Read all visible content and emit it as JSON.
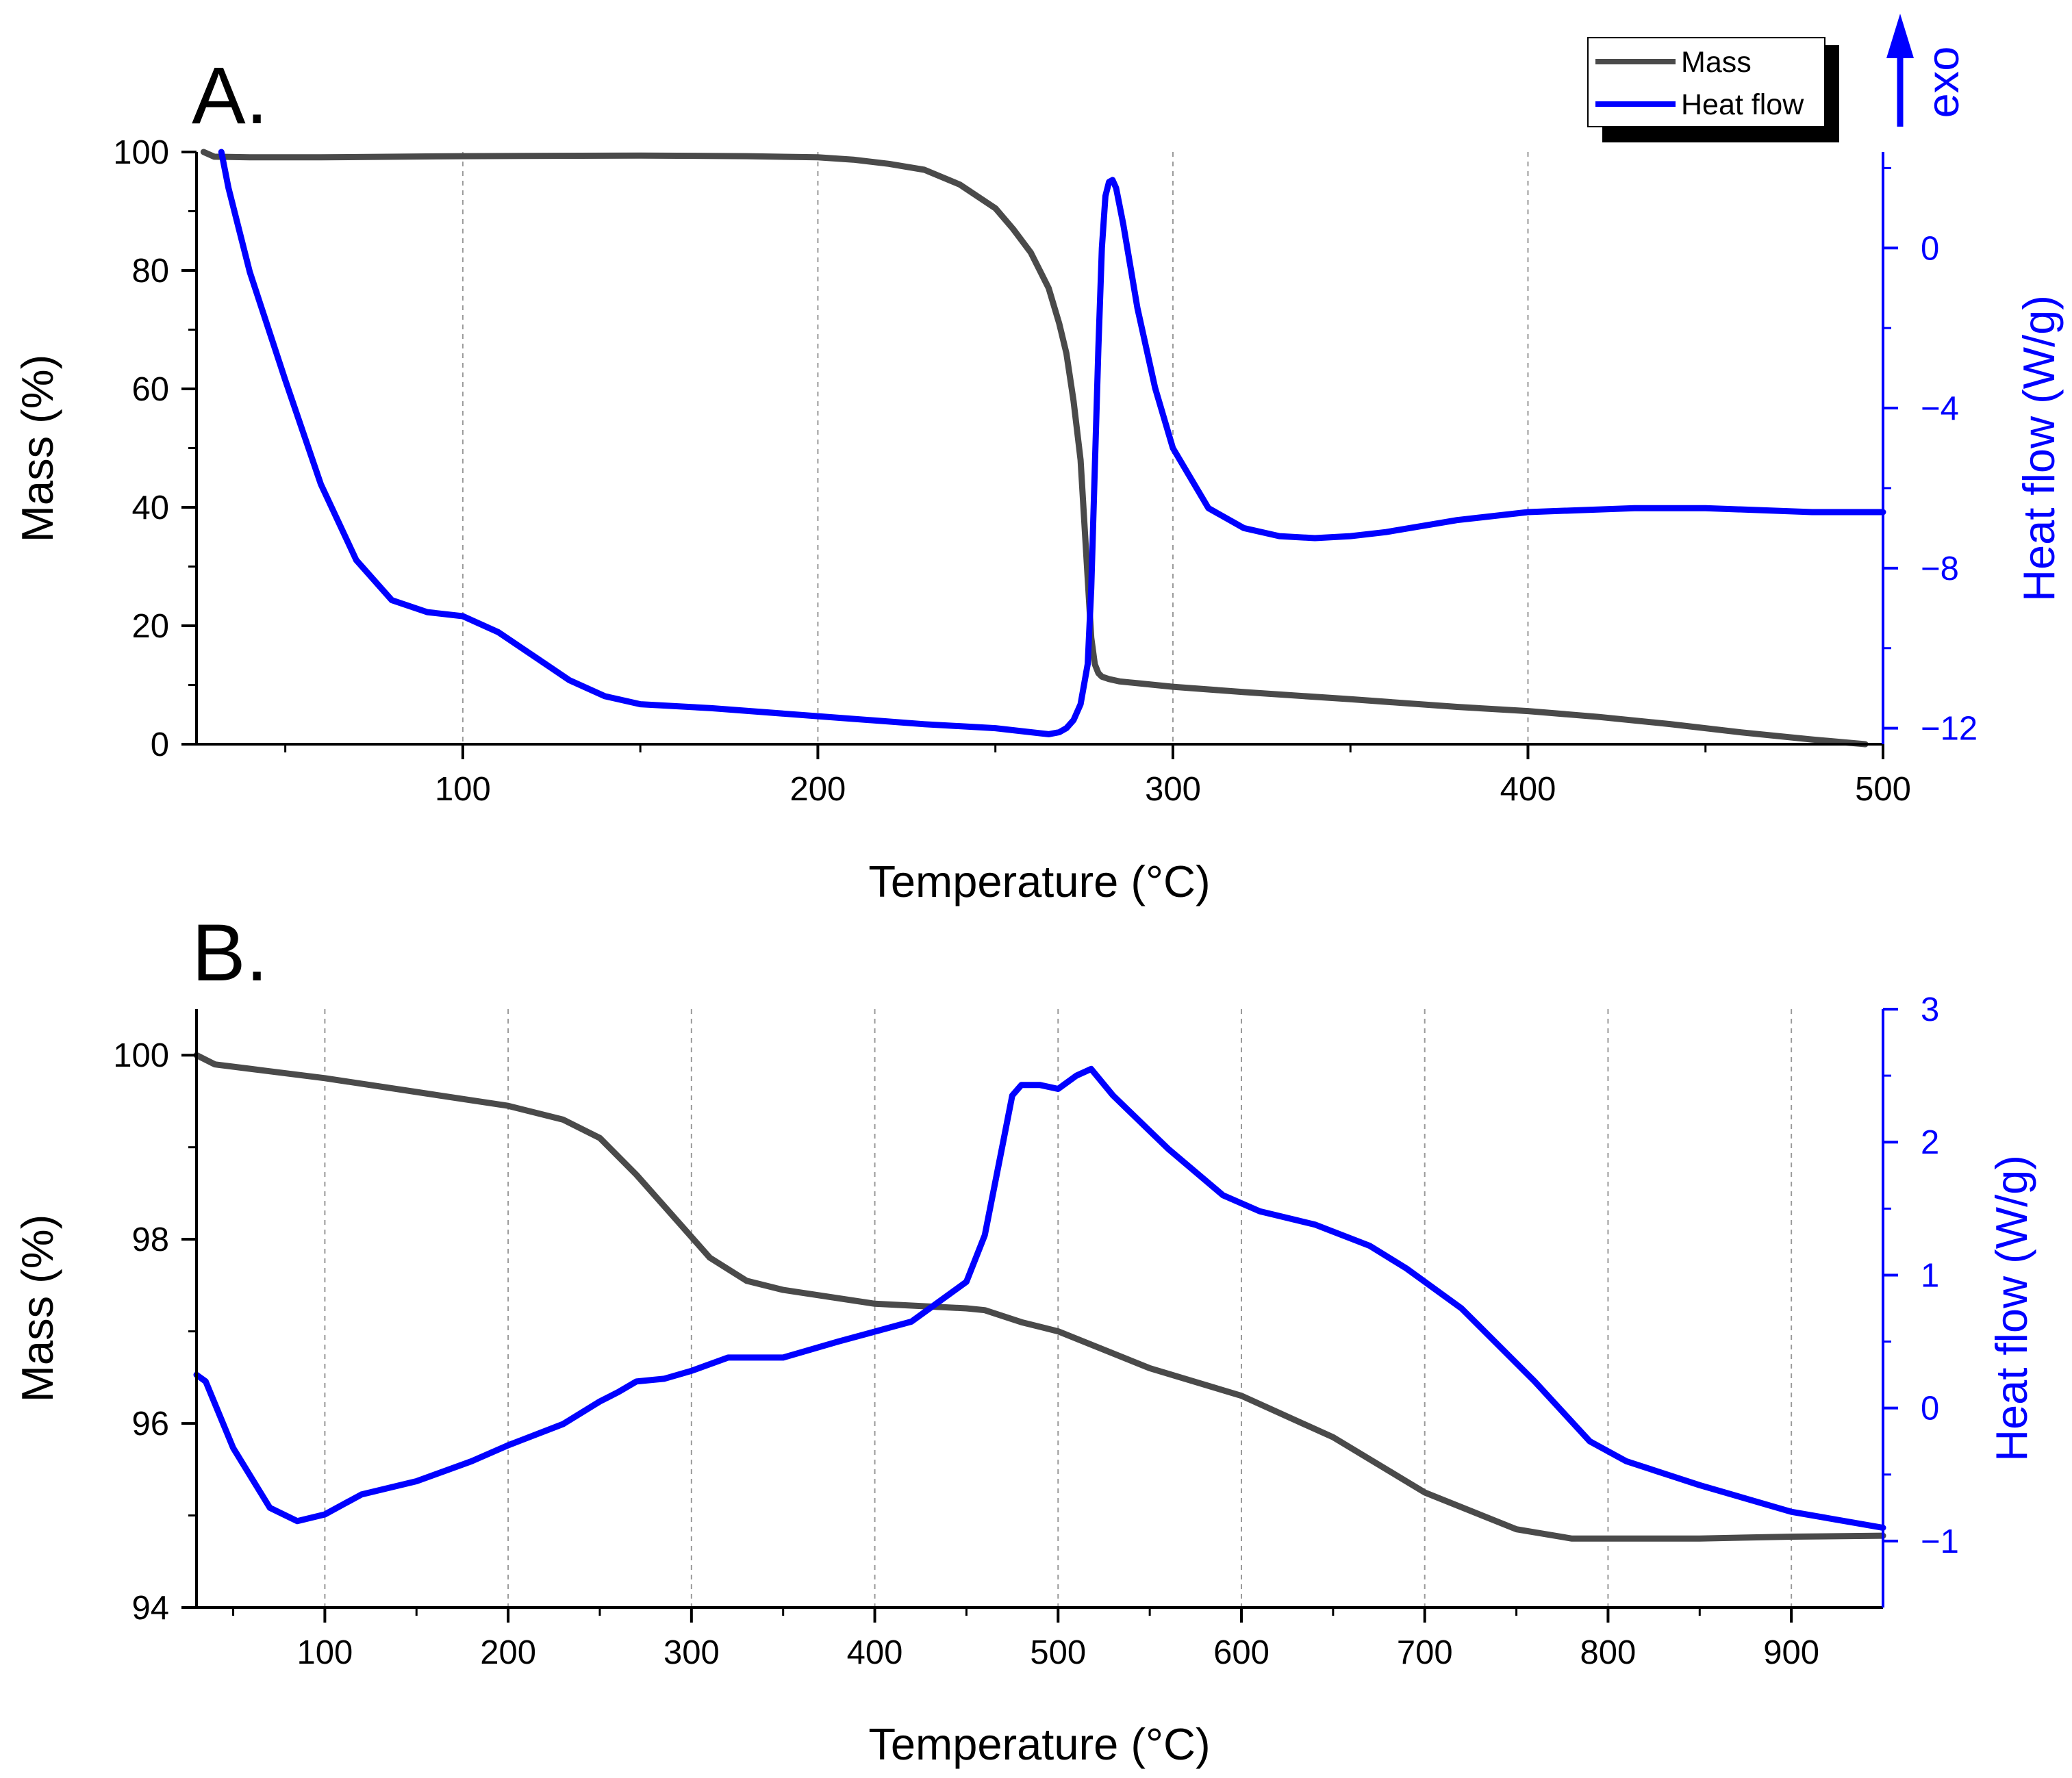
{
  "chart_data": [
    {
      "panel_label": "A.",
      "type": "line",
      "xlabel": "Temperature (°C)",
      "ylabel": "Mass (%)",
      "ylabel_right": "Heat flow (W/g)",
      "xlim": [
        25,
        500
      ],
      "ylim": [
        0,
        100
      ],
      "ylim_right": [
        -12.4,
        2.4
      ],
      "x_ticks": [
        100,
        200,
        300,
        400,
        500
      ],
      "x_tick_labels": [
        "100",
        "200",
        "300",
        "400",
        "500"
      ],
      "y_ticks": [
        0,
        20,
        40,
        60,
        80,
        100
      ],
      "y_tick_labels": [
        "0",
        "20",
        "40",
        "60",
        "80",
        "100"
      ],
      "y_right_ticks": [
        -12,
        -8,
        -4,
        0
      ],
      "y_right_tick_labels": [
        "−12",
        "−8",
        "−4",
        "0"
      ],
      "grid": "vertical dashed",
      "legend": [
        {
          "label": "Mass",
          "color": "#4a4a4a"
        },
        {
          "label": "Heat flow",
          "color": "#0000ff"
        }
      ],
      "exo_label": "exo",
      "series": [
        {
          "name": "Mass",
          "axis": "left",
          "color": "#4a4a4a",
          "x": [
            27,
            30,
            40,
            60,
            100,
            150,
            180,
            200,
            210,
            220,
            230,
            240,
            250,
            255,
            260,
            265,
            268,
            270,
            272,
            274,
            275,
            276,
            277,
            278,
            279,
            280,
            282,
            285,
            290,
            300,
            320,
            350,
            380,
            400,
            420,
            440,
            460,
            480,
            495
          ],
          "y": [
            100,
            99.2,
            99.1,
            99.1,
            99.3,
            99.4,
            99.3,
            99.1,
            98.7,
            98,
            97,
            94.5,
            90.5,
            87,
            83,
            77,
            71,
            66,
            58,
            48,
            38,
            28,
            18,
            13.5,
            12,
            11.4,
            11,
            10.6,
            10.3,
            9.7,
            8.8,
            7.6,
            6.3,
            5.6,
            4.6,
            3.4,
            2,
            0.8,
            0
          ]
        },
        {
          "name": "Heat flow",
          "axis": "right",
          "color": "#0000ff",
          "x": [
            32,
            34,
            40,
            50,
            60,
            70,
            80,
            90,
            100,
            110,
            120,
            130,
            140,
            150,
            170,
            200,
            230,
            250,
            260,
            265,
            268,
            270,
            272,
            274,
            276,
            277,
            278,
            279,
            280,
            281,
            282,
            283,
            284,
            286,
            290,
            295,
            300,
            310,
            320,
            330,
            340,
            350,
            360,
            380,
            400,
            430,
            450,
            480,
            500
          ],
          "y": [
            2.4,
            1.5,
            -0.6,
            -3.3,
            -5.9,
            -7.8,
            -8.8,
            -9.1,
            -9.2,
            -9.6,
            -10.2,
            -10.8,
            -11.2,
            -11.4,
            -11.5,
            -11.7,
            -11.9,
            -12.0,
            -12.1,
            -12.15,
            -12.1,
            -12.0,
            -11.8,
            -11.4,
            -10.4,
            -8.5,
            -5.5,
            -2.5,
            0,
            1.3,
            1.65,
            1.7,
            1.5,
            0.6,
            -1.5,
            -3.5,
            -5.0,
            -6.5,
            -7.0,
            -7.2,
            -7.25,
            -7.2,
            -7.1,
            -6.8,
            -6.6,
            -6.5,
            -6.5,
            -6.6,
            -6.6
          ]
        }
      ]
    },
    {
      "panel_label": "B.",
      "type": "line",
      "xlabel": "Temperature (°C)",
      "ylabel": "Mass (%)",
      "ylabel_right": "Heat flow (W/g)",
      "xlim": [
        30,
        950
      ],
      "ylim": [
        94,
        100.5
      ],
      "ylim_right": [
        -1.5,
        3
      ],
      "x_ticks": [
        100,
        200,
        300,
        400,
        500,
        600,
        700,
        800,
        900
      ],
      "x_tick_labels": [
        "100",
        "200",
        "300",
        "400",
        "500",
        "600",
        "700",
        "800",
        "900"
      ],
      "y_ticks": [
        94,
        96,
        98,
        100
      ],
      "y_tick_labels": [
        "94",
        "96",
        "98",
        "100"
      ],
      "y_right_ticks": [
        -1,
        0,
        1,
        2,
        3
      ],
      "y_right_tick_labels": [
        "−1",
        "0",
        "1",
        "2",
        "3"
      ],
      "grid": "vertical dashed",
      "series": [
        {
          "name": "Mass",
          "axis": "left",
          "color": "#4a4a4a",
          "x": [
            30,
            40,
            60,
            100,
            150,
            200,
            230,
            250,
            270,
            290,
            310,
            330,
            350,
            400,
            450,
            460,
            480,
            500,
            550,
            600,
            650,
            700,
            750,
            780,
            800,
            850,
            900,
            950
          ],
          "y": [
            100,
            99.9,
            99.85,
            99.75,
            99.6,
            99.45,
            99.3,
            99.1,
            98.7,
            98.25,
            97.8,
            97.55,
            97.45,
            97.3,
            97.25,
            97.23,
            97.1,
            97.0,
            96.6,
            96.3,
            95.85,
            95.25,
            94.85,
            94.75,
            94.75,
            94.75,
            94.77,
            94.78
          ]
        },
        {
          "name": "Heat flow",
          "axis": "right",
          "color": "#0000ff",
          "x": [
            30,
            35,
            50,
            70,
            85,
            100,
            120,
            150,
            180,
            200,
            230,
            250,
            260,
            270,
            285,
            300,
            320,
            350,
            380,
            420,
            450,
            460,
            470,
            475,
            480,
            490,
            500,
            510,
            518,
            530,
            560,
            590,
            610,
            640,
            670,
            690,
            720,
            760,
            790,
            810,
            850,
            900,
            950
          ],
          "y": [
            0.25,
            0.2,
            -0.3,
            -0.75,
            -0.85,
            -0.8,
            -0.65,
            -0.55,
            -0.4,
            -0.28,
            -0.12,
            0.05,
            0.12,
            0.2,
            0.22,
            0.28,
            0.38,
            0.38,
            0.5,
            0.65,
            0.95,
            1.3,
            2.0,
            2.35,
            2.43,
            2.43,
            2.4,
            2.5,
            2.55,
            2.35,
            1.95,
            1.6,
            1.48,
            1.38,
            1.22,
            1.05,
            0.75,
            0.2,
            -0.25,
            -0.4,
            -0.58,
            -0.78,
            -0.9
          ]
        }
      ]
    }
  ]
}
